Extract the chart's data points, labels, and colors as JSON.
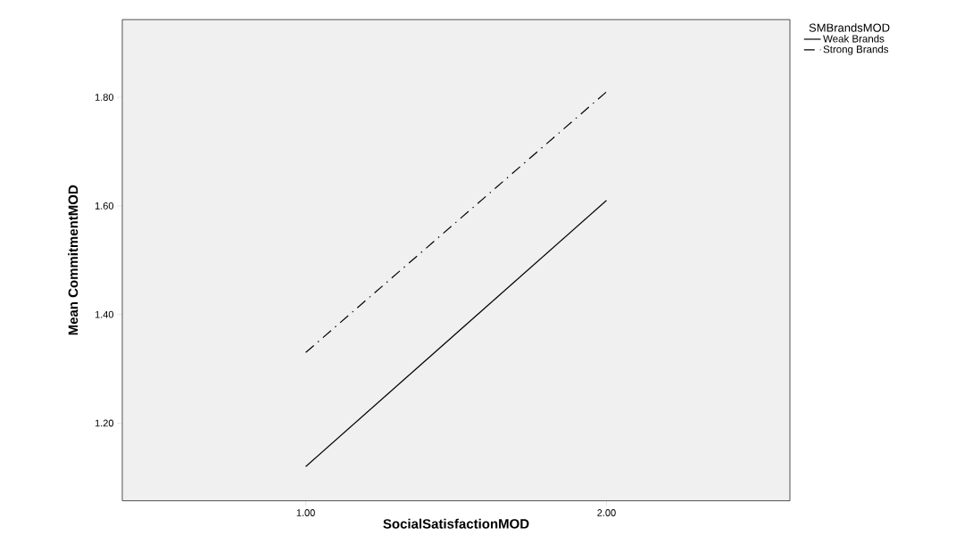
{
  "chart_data": {
    "type": "line",
    "xlabel": "SocialSatisfactionMOD",
    "ylabel": "Mean CommitmentMOD",
    "legend_title": "SMBrandsMOD",
    "categories": [
      "1.00",
      "2.00"
    ],
    "series": [
      {
        "name": "Weak Brands",
        "color": "#000000",
        "line_style": "solid",
        "values": [
          1.12,
          1.61
        ]
      },
      {
        "name": "Strong Brands",
        "color": "#000000",
        "line_style": "dashdot",
        "values": [
          1.33,
          1.81
        ]
      }
    ],
    "ylim": [
      1.057,
      1.943
    ],
    "yticks": [
      {
        "value": 1.2,
        "label": "1.20"
      },
      {
        "value": 1.4,
        "label": "1.40"
      },
      {
        "value": 1.6,
        "label": "1.60"
      },
      {
        "value": 1.8,
        "label": "1.80"
      }
    ],
    "grid": false,
    "legend": "top right",
    "marker": "none"
  }
}
